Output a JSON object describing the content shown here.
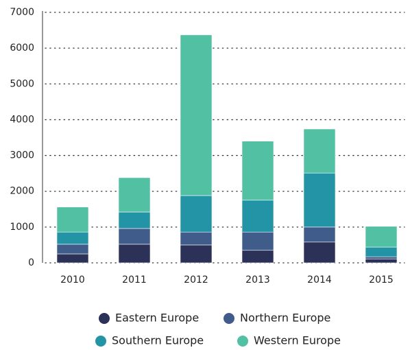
{
  "chart_data": {
    "type": "stacked_bar",
    "categories": [
      "2010",
      "2011",
      "2012",
      "2013",
      "2014",
      "2015"
    ],
    "series": [
      {
        "name": "Eastern Europe",
        "color": "#2b3157",
        "values": [
          250,
          520,
          500,
          350,
          580,
          110
        ]
      },
      {
        "name": "Northern Europe",
        "color": "#3f5c8a",
        "values": [
          270,
          440,
          360,
          510,
          420,
          60
        ]
      },
      {
        "name": "Southern Europe",
        "color": "#2394a6",
        "values": [
          340,
          460,
          1020,
          890,
          1510,
          270
        ]
      },
      {
        "name": "Western Europe",
        "color": "#52c0a2",
        "values": [
          700,
          960,
          4490,
          1650,
          1230,
          580
        ]
      }
    ],
    "ylim": [
      0,
      7000
    ],
    "yticks": [
      0,
      1000,
      2000,
      3000,
      4000,
      5000,
      6000,
      7000
    ],
    "grid": true,
    "legend": "bottom"
  }
}
